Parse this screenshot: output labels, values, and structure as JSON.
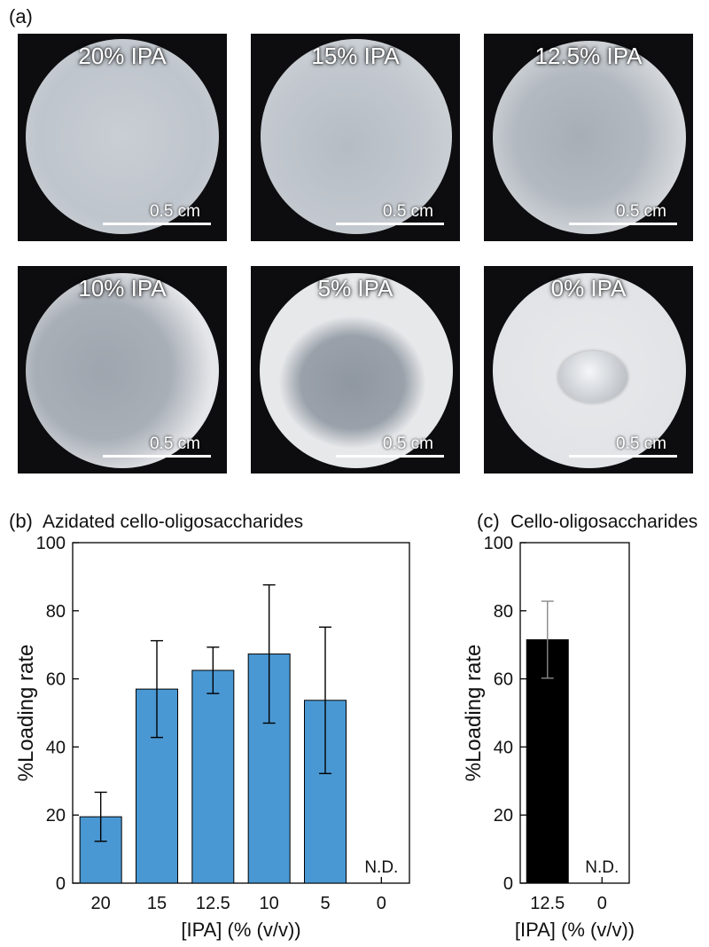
{
  "panels": {
    "a": "(a)",
    "b": "(b)",
    "c": "(c)"
  },
  "photos": [
    {
      "label": "20% IPA",
      "scale_label": "0.5 cm",
      "ipa_percent": 20
    },
    {
      "label": "15% IPA",
      "scale_label": "0.5 cm",
      "ipa_percent": 15
    },
    {
      "label": "12.5% IPA",
      "scale_label": "0.5 cm",
      "ipa_percent": 12.5
    },
    {
      "label": "10% IPA",
      "scale_label": "0.5 cm",
      "ipa_percent": 10
    },
    {
      "label": "5% IPA",
      "scale_label": "0.5 cm",
      "ipa_percent": 5
    },
    {
      "label": "0% IPA",
      "scale_label": "0.5 cm",
      "ipa_percent": 0
    }
  ],
  "chart_data": [
    {
      "type": "bar",
      "title": "Azidated cello-oligosaccharides",
      "xlabel": "[IPA] (% (v/v))",
      "ylabel": "%Loading rate",
      "ylim": [
        0,
        100
      ],
      "yticks": [
        0,
        20,
        40,
        60,
        80,
        100
      ],
      "categories": [
        "20",
        "15",
        "12.5",
        "10",
        "5",
        "0"
      ],
      "values": [
        19.5,
        57,
        62.5,
        67.3,
        53.7,
        null
      ],
      "errors": [
        7.2,
        14.2,
        6.8,
        20.3,
        21.5,
        null
      ],
      "annotations": [
        {
          "category": "0",
          "text": "N.D."
        }
      ],
      "color": "#4a98d3",
      "grid": false
    },
    {
      "type": "bar",
      "title": "Cello-oligosaccharides",
      "xlabel": "[IPA] (% (v/v))",
      "ylabel": "%Loading rate",
      "ylim": [
        0,
        100
      ],
      "yticks": [
        0,
        20,
        40,
        60,
        80,
        100
      ],
      "categories": [
        "12.5",
        "0"
      ],
      "values": [
        71.5,
        null
      ],
      "errors": [
        11.3,
        null
      ],
      "annotations": [
        {
          "category": "0",
          "text": "N.D."
        }
      ],
      "color": "#000000",
      "grid": false
    }
  ]
}
